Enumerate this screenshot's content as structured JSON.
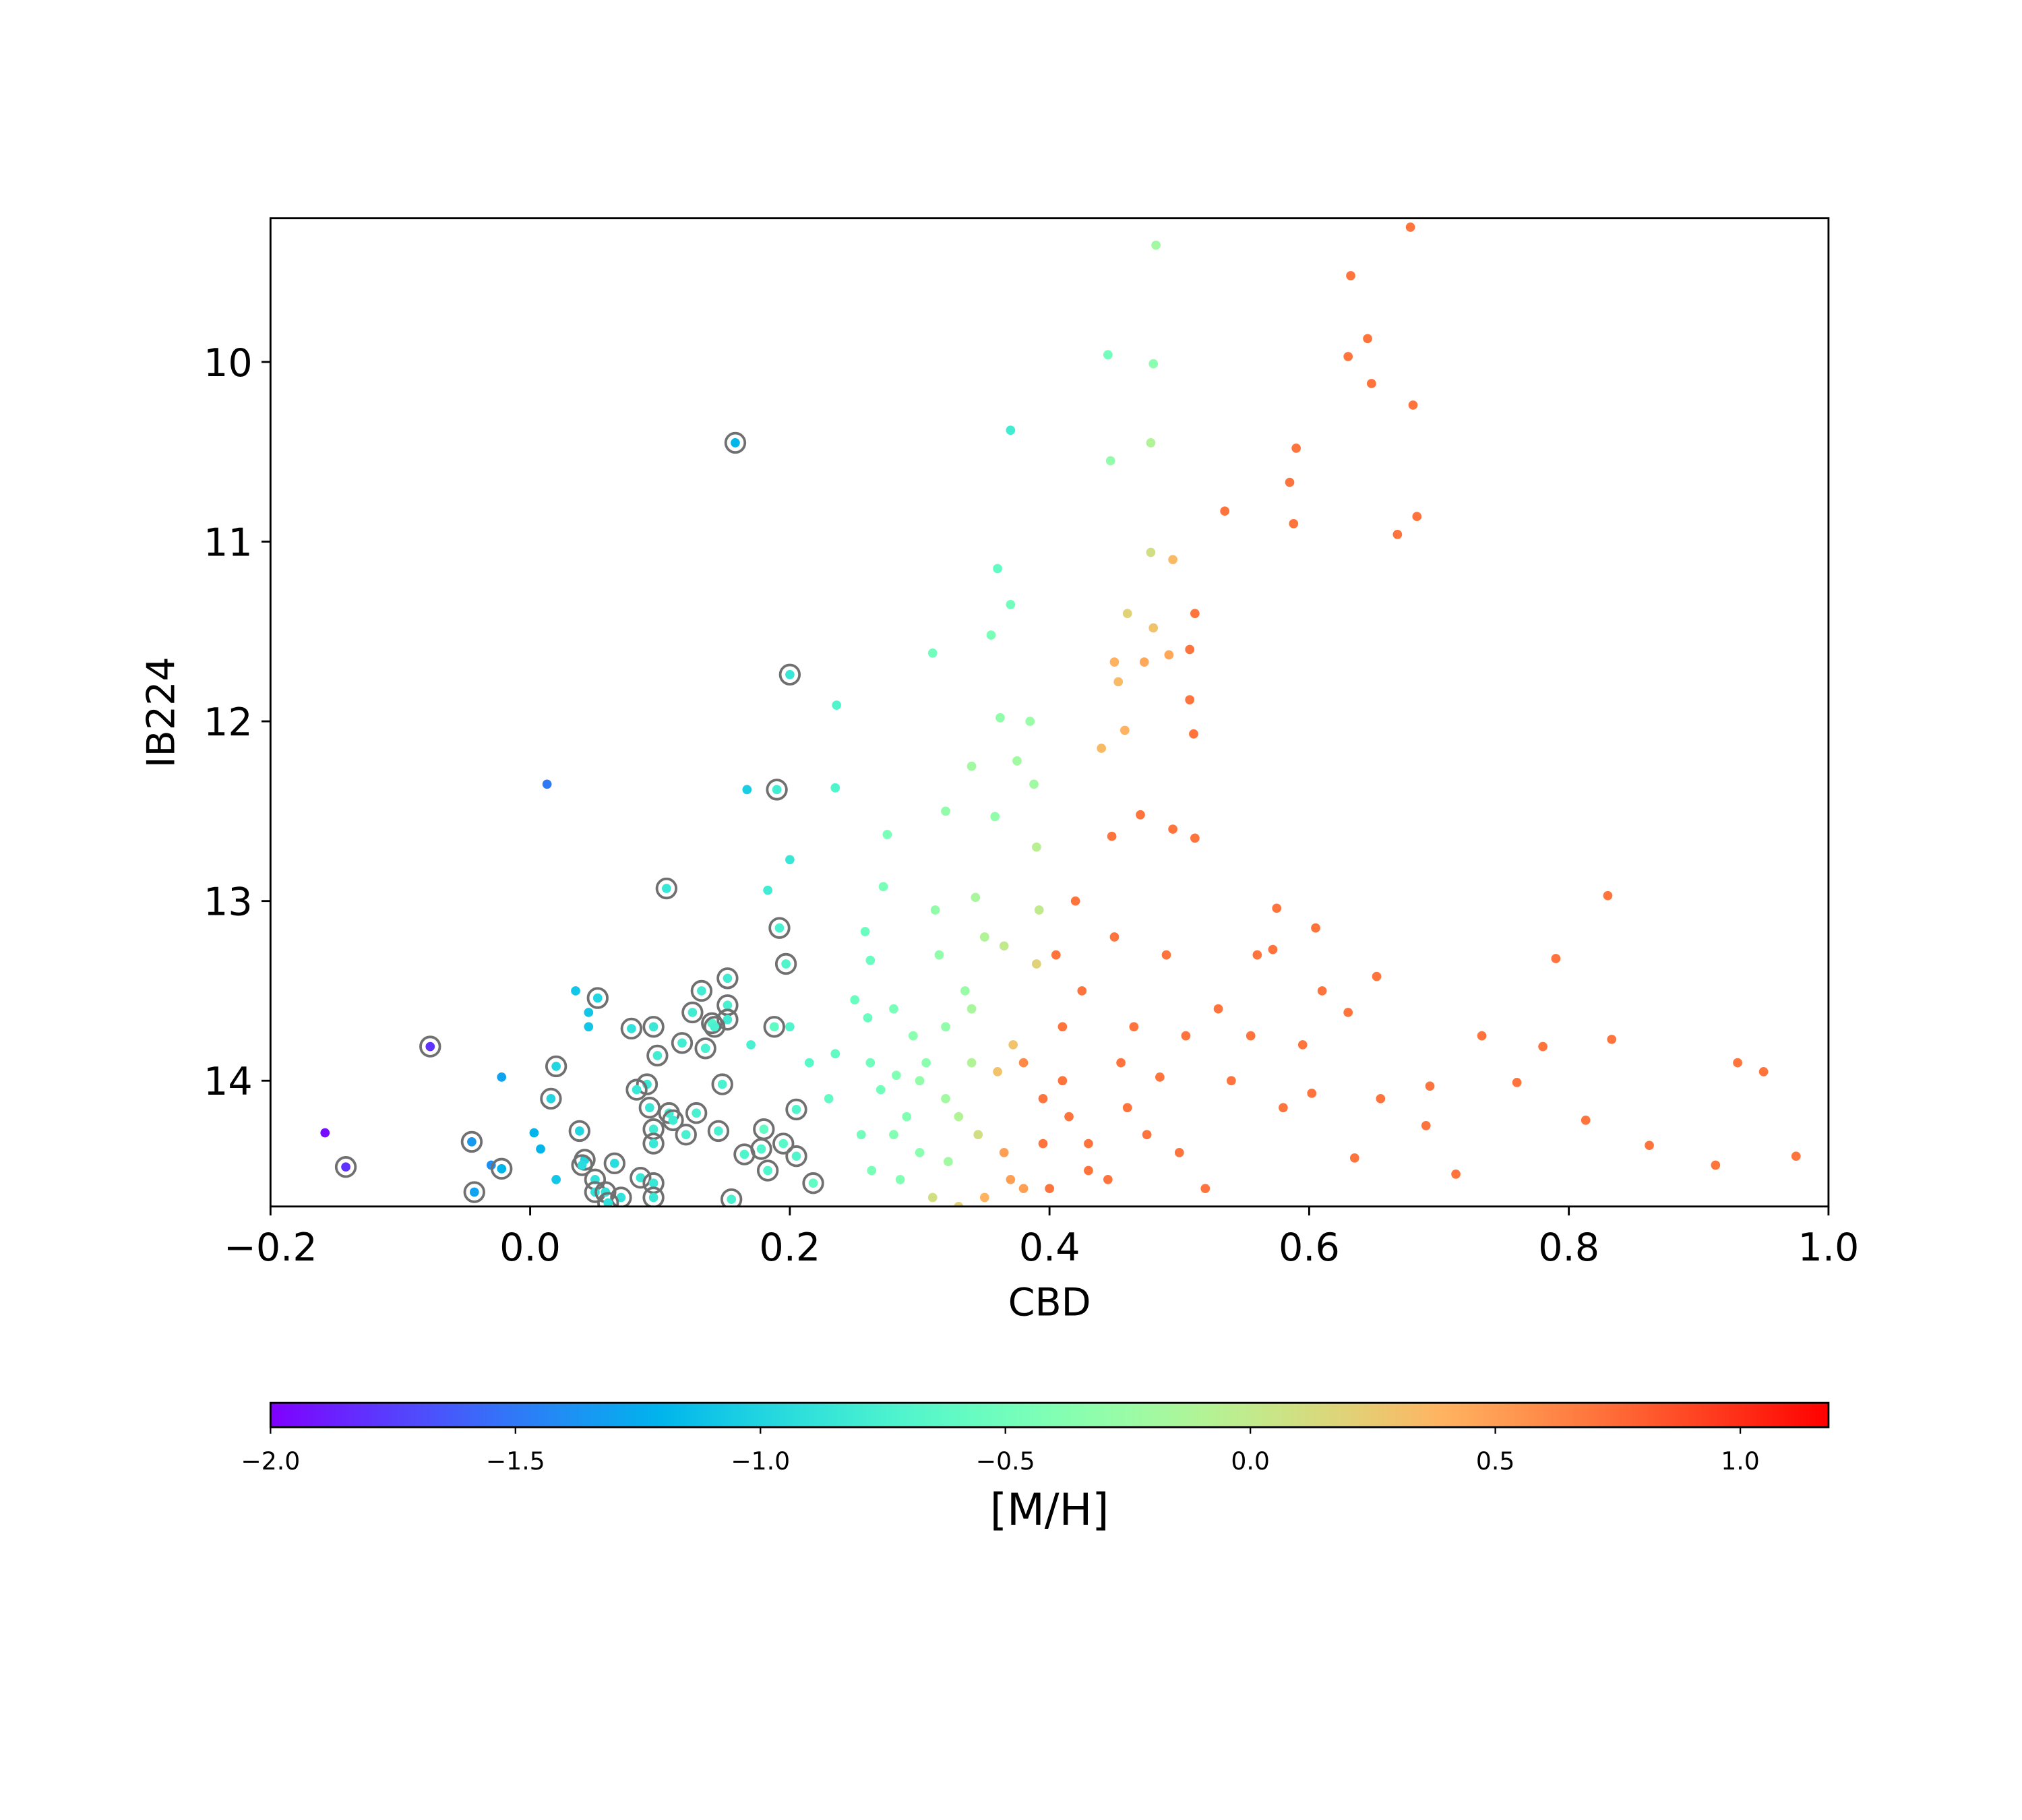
{
  "chart_data": {
    "type": "scatter",
    "xlabel": "CBD",
    "ylabel": "IB224",
    "xlim": [
      -0.2,
      1.0
    ],
    "xticks": [
      {
        "value": -0.2,
        "label": "−0.2"
      },
      {
        "value": 0.0,
        "label": "0.0"
      },
      0.2,
      0.4,
      0.6,
      0.8,
      {
        "value": 1.0,
        "label": "1.0"
      }
    ],
    "ylim": [
      14.7,
      9.2
    ],
    "yticks": [
      10,
      11,
      12,
      13,
      14
    ],
    "colorbar": {
      "label": "[M/H]",
      "cmap": "rainbow",
      "clim": [
        -2.0,
        1.18
      ],
      "ticks": [
        {
          "value": -2.0,
          "label": "−2.0"
        },
        {
          "value": -1.5,
          "label": "−1.5"
        },
        {
          "value": -1.0,
          "label": "−1.0"
        },
        {
          "value": -0.5,
          "label": "−0.5"
        },
        {
          "value": 0.0,
          "label": "0.0"
        },
        0.5,
        {
          "value": 1.0,
          "label": "1.0"
        }
      ]
    },
    "series": [
      {
        "marker": "dot",
        "x": [
          -0.158,
          0.013,
          0.035,
          0.045,
          0.045,
          -0.022,
          0.003,
          0.008,
          -0.03,
          0.02,
          0.167,
          0.2,
          0.183,
          0.236,
          0.235,
          0.17,
          0.2,
          0.215,
          0.235,
          0.23,
          0.25,
          0.26,
          0.262,
          0.27,
          0.255,
          0.263,
          0.258,
          0.262,
          0.28,
          0.275,
          0.272,
          0.282,
          0.29,
          0.285,
          0.295,
          0.3,
          0.31,
          0.32,
          0.312,
          0.315,
          0.32,
          0.32,
          0.322,
          0.33,
          0.335,
          0.34,
          0.343,
          0.34,
          0.345,
          0.35,
          0.355,
          0.36,
          0.362,
          0.358,
          0.365,
          0.36,
          0.365,
          0.37,
          0.37,
          0.375,
          0.372,
          0.38,
          0.385,
          0.388,
          0.39,
          0.392,
          0.39,
          0.395,
          0.4,
          0.405,
          0.41,
          0.415,
          0.42,
          0.425,
          0.43,
          0.44,
          0.445,
          0.447,
          0.448,
          0.45,
          0.455,
          0.45,
          0.453,
          0.458,
          0.46,
          0.465,
          0.47,
          0.473,
          0.475,
          0.478,
          0.478,
          0.48,
          0.482,
          0.48,
          0.485,
          0.49,
          0.492,
          0.495,
          0.495,
          0.5,
          0.505,
          0.508,
          0.508,
          0.512,
          0.511,
          0.512,
          0.52,
          0.53,
          0.535,
          0.54,
          0.555,
          0.56,
          0.572,
          0.575,
          0.58,
          0.585,
          0.588,
          0.59,
          0.595,
          0.602,
          0.605,
          0.61,
          0.63,
          0.632,
          0.63,
          0.635,
          0.645,
          0.648,
          0.652,
          0.655,
          0.668,
          0.678,
          0.68,
          0.683,
          0.69,
          0.693,
          0.713,
          0.733,
          0.76,
          0.78,
          0.79,
          0.813,
          0.83,
          0.833,
          0.862,
          0.913,
          0.93,
          0.95,
          0.975,
          0.41,
          0.43,
          0.445,
          0.46,
          0.395,
          0.38,
          0.37,
          0.35,
          0.31,
          0.3,
          0.28,
          0.33,
          0.34,
          0.305
        ],
        "values": [
          14.29,
          12.35,
          13.5,
          13.62,
          13.7,
          13.98,
          14.29,
          14.38,
          14.47,
          14.55,
          12.38,
          12.77,
          12.94,
          11.91,
          12.37,
          13.8,
          13.7,
          13.9,
          13.85,
          14.1,
          13.55,
          13.65,
          13.9,
          14.05,
          14.3,
          14.5,
          13.17,
          13.33,
          13.6,
          12.63,
          12.92,
          13.97,
          14.2,
          14.55,
          13.75,
          14.4,
          11.62,
          12.5,
          13.05,
          13.3,
          13.7,
          14.1,
          14.45,
          14.7,
          13.5,
          12.25,
          12.98,
          13.9,
          14.3,
          13.2,
          11.52,
          11.15,
          11.98,
          12.53,
          13.25,
          13.95,
          14.4,
          10.38,
          11.35,
          12.22,
          13.8,
          14.6,
          12.0,
          12.35,
          12.7,
          13.05,
          13.35,
          14.1,
          14.6,
          13.3,
          13.7,
          14.2,
          13.0,
          13.5,
          14.5,
          12.15,
          9.96,
          10.55,
          12.64,
          13.2,
          13.9,
          11.67,
          11.78,
          12.05,
          11.4,
          13.7,
          12.52,
          11.67,
          14.3,
          10.45,
          11.06,
          10.01,
          9.35,
          11.48,
          13.98,
          13.3,
          11.63,
          11.1,
          12.6,
          14.4,
          13.75,
          11.6,
          11.88,
          11.4,
          12.07,
          12.65,
          14.6,
          13.6,
          10.83,
          14.0,
          13.75,
          13.3,
          13.27,
          13.04,
          14.15,
          10.67,
          10.9,
          10.48,
          13.8,
          14.07,
          13.15,
          13.5,
          13.62,
          9.52,
          9.97,
          14.43,
          9.87,
          10.12,
          13.42,
          14.1,
          10.96,
          9.25,
          10.24,
          10.86,
          14.25,
          14.03,
          14.52,
          13.75,
          14.01,
          13.81,
          13.32,
          14.22,
          12.97,
          13.77,
          14.36,
          14.47,
          13.9,
          13.95,
          14.42,
          14.0,
          14.35,
          14.55,
          14.15,
          14.35,
          13.9,
          14.55,
          14.65,
          14.65,
          14.0,
          14.3,
          14.2,
          13.6,
          13.9
        ],
        "c": [
          -1.95,
          -1.5,
          -1.1,
          -1.1,
          -1.1,
          -1.3,
          -1.2,
          -1.2,
          -1.4,
          -1.1,
          -1.05,
          -0.85,
          -0.8,
          -0.7,
          -0.7,
          -0.75,
          -0.7,
          -0.65,
          -0.6,
          -0.6,
          -0.55,
          -0.55,
          -0.5,
          -0.5,
          -0.5,
          -0.45,
          -0.55,
          -0.55,
          -0.45,
          -0.45,
          -0.45,
          -0.4,
          -0.4,
          -0.4,
          -0.35,
          -0.35,
          -0.5,
          -0.3,
          -0.3,
          -0.3,
          -0.3,
          -0.2,
          -0.2,
          0.2,
          -0.25,
          -0.2,
          -0.15,
          -0.1,
          0.1,
          -0.1,
          -0.45,
          -0.6,
          -0.3,
          -0.3,
          0.0,
          0.3,
          0.5,
          -0.8,
          -0.5,
          -0.2,
          0.3,
          0.5,
          -0.25,
          -0.2,
          -0.05,
          0.0,
          0.2,
          0.7,
          0.7,
          0.7,
          0.7,
          0.7,
          0.7,
          0.7,
          0.7,
          0.35,
          -0.5,
          -0.3,
          0.7,
          0.7,
          0.7,
          0.4,
          0.35,
          0.4,
          0.2,
          0.7,
          0.7,
          0.45,
          0.7,
          -0.1,
          0.1,
          -0.35,
          -0.2,
          0.3,
          0.7,
          0.7,
          0.45,
          0.35,
          0.7,
          0.7,
          0.7,
          0.7,
          0.7,
          0.7,
          0.7,
          0.7,
          0.7,
          0.7,
          0.7,
          0.7,
          0.7,
          0.7,
          0.7,
          0.7,
          0.7,
          0.7,
          0.7,
          0.7,
          0.7,
          0.7,
          0.7,
          0.7,
          0.7,
          0.7,
          0.7,
          0.7,
          0.7,
          0.7,
          0.7,
          0.7,
          0.7,
          0.7,
          0.7,
          0.7,
          0.7,
          0.7,
          0.7,
          0.7,
          0.7,
          0.7,
          0.7,
          0.7,
          0.7,
          0.7,
          0.7,
          0.7,
          0.7,
          0.7,
          0.7,
          0.7,
          0.7,
          0.7,
          0.7,
          0.7,
          0.6,
          0.5,
          0.4,
          0.1,
          -0.3,
          -0.4,
          -0.1,
          -0.15,
          -0.35
        ]
      },
      {
        "marker": "circled",
        "x": [
          0.158,
          0.2,
          0.19,
          0.105,
          0.192,
          0.197,
          0.152,
          0.052,
          0.132,
          0.152,
          0.125,
          0.152,
          0.14,
          0.142,
          0.188,
          0.078,
          0.095,
          0.117,
          0.135,
          -0.077,
          0.098,
          0.02,
          0.09,
          0.148,
          0.082,
          0.016,
          0.092,
          0.107,
          0.128,
          0.205,
          0.095,
          0.11,
          0.12,
          0.145,
          0.18,
          0.038,
          0.195,
          0.095,
          -0.045,
          0.178,
          0.165,
          0.205,
          0.042,
          -0.142,
          -0.022,
          0.065,
          0.04,
          0.183,
          0.05,
          0.085,
          0.095,
          0.218,
          -0.043,
          0.05,
          0.058,
          0.07,
          0.095,
          0.155,
          0.06
        ],
        "values": [
          10.45,
          11.74,
          12.38,
          12.93,
          13.15,
          13.35,
          13.43,
          13.54,
          13.5,
          13.58,
          13.62,
          13.66,
          13.68,
          13.7,
          13.7,
          13.71,
          13.7,
          13.79,
          13.82,
          13.81,
          13.86,
          13.92,
          14.02,
          14.02,
          14.05,
          14.1,
          14.15,
          14.18,
          14.18,
          14.16,
          14.27,
          14.22,
          14.3,
          14.28,
          14.27,
          14.28,
          14.35,
          14.35,
          14.34,
          14.38,
          14.41,
          14.42,
          14.44,
          14.48,
          14.49,
          14.46,
          14.47,
          14.5,
          14.55,
          14.54,
          14.57,
          14.57,
          14.62,
          14.62,
          14.62,
          14.65,
          14.65,
          14.66,
          14.68
        ],
        "c": [
          -1.2,
          -0.85,
          -0.8,
          -0.85,
          -0.75,
          -0.7,
          -0.8,
          -1.0,
          -0.8,
          -0.75,
          -0.8,
          -0.8,
          -0.7,
          -0.75,
          -0.6,
          -0.9,
          -0.85,
          -0.8,
          -0.75,
          -1.8,
          -0.8,
          -1.0,
          -0.85,
          -0.75,
          -0.85,
          -1.0,
          -0.85,
          -0.8,
          -0.75,
          -0.7,
          -0.8,
          -0.8,
          -0.75,
          -0.75,
          -0.6,
          -1.0,
          -0.65,
          -0.85,
          -1.35,
          -0.7,
          -0.7,
          -0.7,
          -1.0,
          -1.8,
          -1.2,
          -0.95,
          -0.95,
          -0.7,
          -0.9,
          -0.85,
          -0.85,
          -0.6,
          -1.3,
          -0.9,
          -0.9,
          -0.9,
          -0.85,
          -0.75,
          -0.9
        ]
      }
    ]
  }
}
